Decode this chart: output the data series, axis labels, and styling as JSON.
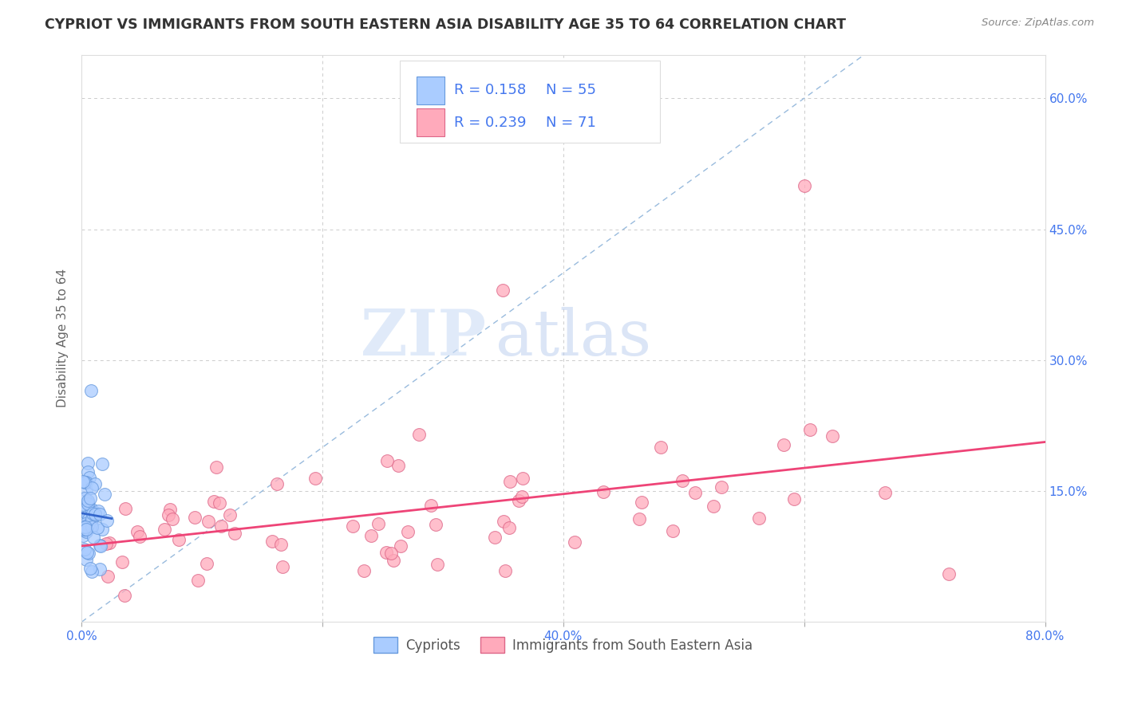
{
  "title": "CYPRIOT VS IMMIGRANTS FROM SOUTH EASTERN ASIA DISABILITY AGE 35 TO 64 CORRELATION CHART",
  "source": "Source: ZipAtlas.com",
  "ylabel": "Disability Age 35 to 64",
  "xlim": [
    0.0,
    0.8
  ],
  "ylim": [
    0.0,
    0.65
  ],
  "xticks": [
    0.0,
    0.2,
    0.4,
    0.6,
    0.8
  ],
  "xticklabels": [
    "0.0%",
    "",
    "40.0%",
    "",
    "80.0%"
  ],
  "yticks": [
    0.0,
    0.15,
    0.3,
    0.45,
    0.6
  ],
  "yticklabels_right": [
    "",
    "15.0%",
    "30.0%",
    "45.0%",
    "60.0%"
  ],
  "background_color": "#ffffff",
  "grid_color": "#cccccc",
  "watermark_zip": "ZIP",
  "watermark_atlas": "atlas",
  "legend_R1": "R = 0.158",
  "legend_N1": "N = 55",
  "legend_R2": "R = 0.239",
  "legend_N2": "N = 71",
  "cypriot_color": "#aaccff",
  "cypriot_edge": "#6699dd",
  "immigrant_color": "#ffaabb",
  "immigrant_edge": "#dd6688",
  "cypriot_trend_color": "#3366cc",
  "immigrant_trend_color": "#ee4477",
  "diagonal_color": "#99bbdd",
  "label_cypriots": "Cypriots",
  "label_immigrants": "Immigrants from South Eastern Asia",
  "blue_text": "#4477ee",
  "title_color": "#333333",
  "source_color": "#888888",
  "tick_color": "#4477ee",
  "axis_label_color": "#666666"
}
